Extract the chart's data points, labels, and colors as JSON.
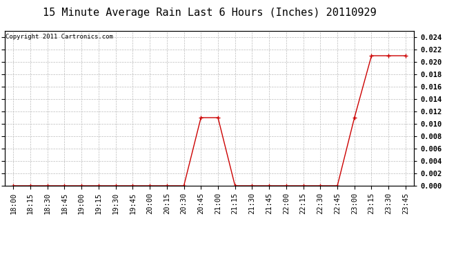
{
  "title": "15 Minute Average Rain Last 6 Hours (Inches) 20110929",
  "copyright": "Copyright 2011 Cartronics.com",
  "x_labels": [
    "18:00",
    "18:15",
    "18:30",
    "18:45",
    "19:00",
    "19:15",
    "19:30",
    "19:45",
    "20:00",
    "20:15",
    "20:30",
    "20:45",
    "21:00",
    "21:15",
    "21:30",
    "21:45",
    "22:00",
    "22:15",
    "22:30",
    "22:45",
    "23:00",
    "23:15",
    "23:30",
    "23:45"
  ],
  "y_values": [
    0.0,
    0.0,
    0.0,
    0.0,
    0.0,
    0.0,
    0.0,
    0.0,
    0.0,
    0.0,
    0.0,
    0.011,
    0.011,
    0.0,
    0.0,
    0.0,
    0.0,
    0.0,
    0.0,
    0.0,
    0.011,
    0.021,
    0.021,
    0.021
  ],
  "line_color": "#cc0000",
  "marker": "+",
  "marker_size": 4,
  "ylim": [
    0.0,
    0.025
  ],
  "yticks": [
    0.0,
    0.002,
    0.004,
    0.006,
    0.008,
    0.01,
    0.012,
    0.014,
    0.016,
    0.018,
    0.02,
    0.022,
    0.024
  ],
  "bg_color": "#ffffff",
  "grid_color": "#bbbbbb",
  "title_fontsize": 11,
  "tick_fontsize": 7.5,
  "copyright_fontsize": 6.5
}
